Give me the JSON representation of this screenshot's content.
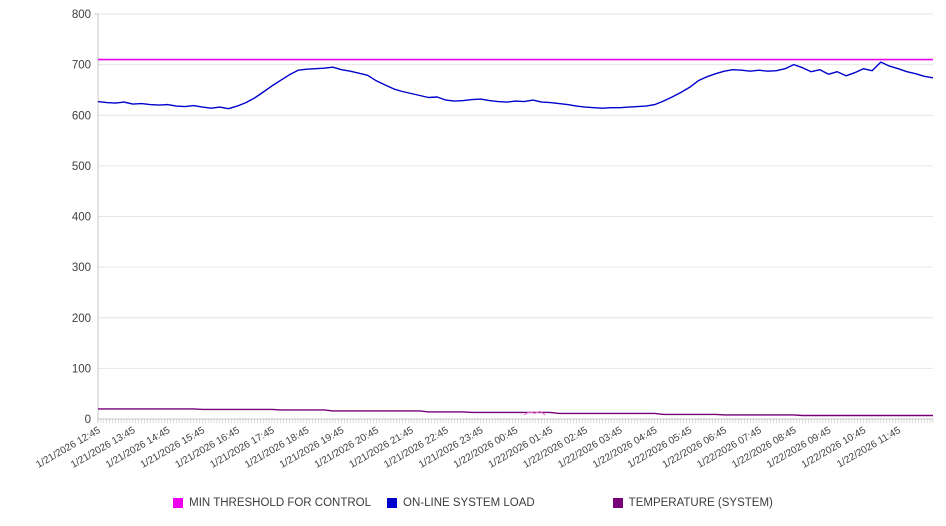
{
  "chart_data": {
    "type": "line",
    "title": "",
    "x_axis": {
      "labels": [
        "1/21/2026 12:45",
        "1/21/2026 13:45",
        "1/21/2026 14:45",
        "1/21/2026 15:45",
        "1/21/2026 16:45",
        "1/21/2026 17:45",
        "1/21/2026 18:45",
        "1/21/2026 19:45",
        "1/21/2026 20:45",
        "1/21/2026 21:45",
        "1/21/2026 22:45",
        "1/21/2026 23:45",
        "1/22/2026 00:45",
        "1/22/2026 01:45",
        "1/22/2026 02:45",
        "1/22/2026 03:45",
        "1/22/2026 04:45",
        "1/22/2026 05:45",
        "1/22/2026 06:45",
        "1/22/2026 07:45",
        "1/22/2026 08:45",
        "1/22/2026 09:45",
        "1/22/2026 10:45",
        "1/22/2026 11:45"
      ],
      "label_interval_minutes": 60,
      "minor_tick_minutes": 5,
      "span_hours": 24,
      "label_rotation_deg": -30
    },
    "y_axis": {
      "min": 0,
      "max": 800,
      "step": 100,
      "tick_labels": [
        "0",
        "100",
        "200",
        "300",
        "400",
        "500",
        "600",
        "700",
        "800"
      ]
    },
    "grid": "horizontal",
    "sample_interval_minutes": 15,
    "series": [
      {
        "name": "MIN THRESHOLD FOR CONTROL",
        "color": "#ee00ee",
        "kind": "constant",
        "value": 710
      },
      {
        "name": "ON-LINE SYSTEM LOAD",
        "color": "#0000cd",
        "kind": "points",
        "values": [
          627,
          625,
          624,
          626,
          622,
          623,
          621,
          620,
          621,
          618,
          617,
          619,
          616,
          614,
          616,
          613,
          618,
          625,
          634,
          646,
          658,
          669,
          680,
          689,
          691,
          692,
          693,
          695,
          690,
          687,
          683,
          679,
          668,
          660,
          652,
          647,
          643,
          639,
          635,
          636,
          630,
          628,
          629,
          631,
          632,
          629,
          627,
          626,
          628,
          627,
          630,
          626,
          625,
          623,
          621,
          618,
          616,
          615,
          614,
          615,
          615,
          616,
          617,
          618,
          621,
          628,
          636,
          645,
          655,
          668,
          676,
          682,
          687,
          690,
          689,
          687,
          689,
          687,
          688,
          692,
          700,
          694,
          686,
          690,
          681,
          686,
          678,
          684,
          692,
          688,
          705,
          697,
          692,
          686,
          682,
          677,
          674
        ]
      },
      {
        "name": "TEMPERATURE (SYSTEM)",
        "color": "#770077",
        "kind": "points",
        "values": [
          20,
          20,
          20,
          20,
          20,
          20,
          20,
          20,
          20,
          20,
          20,
          20,
          19,
          19,
          19,
          19,
          19,
          19,
          19,
          19,
          19,
          18,
          18,
          18,
          18,
          18,
          18,
          16,
          16,
          16,
          16,
          16,
          16,
          16,
          16,
          16,
          16,
          16,
          14,
          14,
          14,
          14,
          14,
          13,
          13,
          13,
          13,
          13,
          13,
          13,
          13,
          13,
          13,
          11,
          11,
          11,
          11,
          11,
          11,
          11,
          11,
          11,
          11,
          11,
          11,
          9,
          9,
          9,
          9,
          9,
          9,
          9,
          8,
          8,
          8,
          8,
          8,
          8,
          8,
          8,
          8,
          7,
          7,
          7,
          7,
          7,
          7,
          7,
          7,
          7,
          7,
          7,
          7,
          7,
          7,
          7,
          7
        ]
      }
    ],
    "threshold_blip": {
      "start_hour_offset": 12.25,
      "interval_hours": 0.15,
      "values": [
        8,
        14,
        11,
        15,
        8
      ],
      "color": "#e878d2"
    },
    "legend_position": "bottom"
  },
  "legend": {
    "items": [
      {
        "label": "MIN THRESHOLD FOR CONTROL",
        "color": "#ee00ee"
      },
      {
        "label": "ON-LINE SYSTEM LOAD",
        "color": "#0000cd"
      },
      {
        "label": "TEMPERATURE (SYSTEM)",
        "color": "#770077"
      }
    ]
  },
  "colors": {
    "grid_line": "#e6e6e6",
    "axis_line": "#c4c4c4",
    "tick_mark": "#c4c4c4",
    "axis_text": "#404040",
    "background": "#ffffff"
  }
}
